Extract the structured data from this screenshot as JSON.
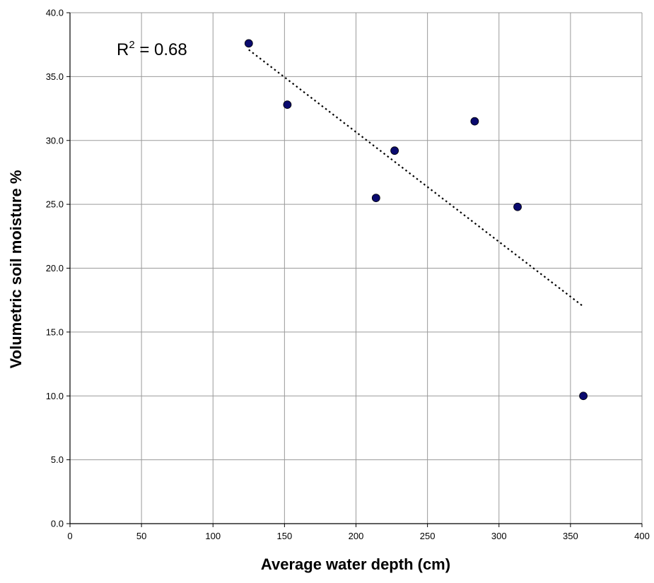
{
  "chart_data": {
    "type": "scatter",
    "title": "",
    "xlabel": "Average water depth (cm)",
    "ylabel": "Volumetric soil moisture %",
    "xlim": [
      0,
      400
    ],
    "ylim": [
      0,
      40
    ],
    "x_ticks": [
      "0",
      "50",
      "100",
      "150",
      "200",
      "250",
      "300",
      "350",
      "400"
    ],
    "y_ticks": [
      "0.0",
      "5.0",
      "10.0",
      "15.0",
      "20.0",
      "25.0",
      "30.0",
      "35.0",
      "40.0"
    ],
    "grid": true,
    "legend": "none",
    "series": [
      {
        "x": [
          125,
          152,
          214,
          227,
          283,
          313,
          359
        ],
        "y": [
          37.6,
          32.8,
          25.5,
          29.2,
          31.5,
          24.8,
          10.0
        ],
        "color": "#0a0a6e"
      }
    ],
    "trendline": {
      "type": "linear",
      "style": "dotted",
      "color": "#000000",
      "x": [
        125,
        359
      ],
      "y": [
        37.1,
        17.0
      ]
    },
    "annotation": {
      "r2_prefix": "R",
      "r2_sup": "2",
      "r2_suffix": " = 0.68"
    }
  }
}
